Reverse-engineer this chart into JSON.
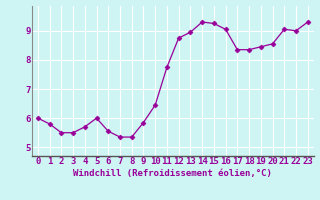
{
  "x": [
    0,
    1,
    2,
    3,
    4,
    5,
    6,
    7,
    8,
    9,
    10,
    11,
    12,
    13,
    14,
    15,
    16,
    17,
    18,
    19,
    20,
    21,
    22,
    23
  ],
  "y": [
    6.0,
    5.8,
    5.5,
    5.5,
    5.7,
    6.0,
    5.55,
    5.35,
    5.35,
    5.85,
    6.45,
    7.75,
    8.75,
    8.95,
    9.3,
    9.25,
    9.05,
    8.35,
    8.35,
    8.45,
    8.55,
    9.05,
    9.0,
    9.3
  ],
  "line_color": "#990099",
  "marker": "D",
  "marker_size": 2.5,
  "bg_color": "#cff4f4",
  "grid_color": "#ffffff",
  "xlabel": "Windchill (Refroidissement éolien,°C)",
  "xlabel_color": "#990099",
  "xlabel_fontsize": 6.5,
  "tick_color": "#990099",
  "tick_fontsize": 6.5,
  "ylim": [
    4.7,
    9.85
  ],
  "xlim": [
    -0.5,
    23.5
  ],
  "yticks": [
    5,
    6,
    7,
    8,
    9
  ],
  "xticks": [
    0,
    1,
    2,
    3,
    4,
    5,
    6,
    7,
    8,
    9,
    10,
    11,
    12,
    13,
    14,
    15,
    16,
    17,
    18,
    19,
    20,
    21,
    22,
    23
  ],
  "spine_color": "#888888",
  "bottom_spine_color": "#555555"
}
